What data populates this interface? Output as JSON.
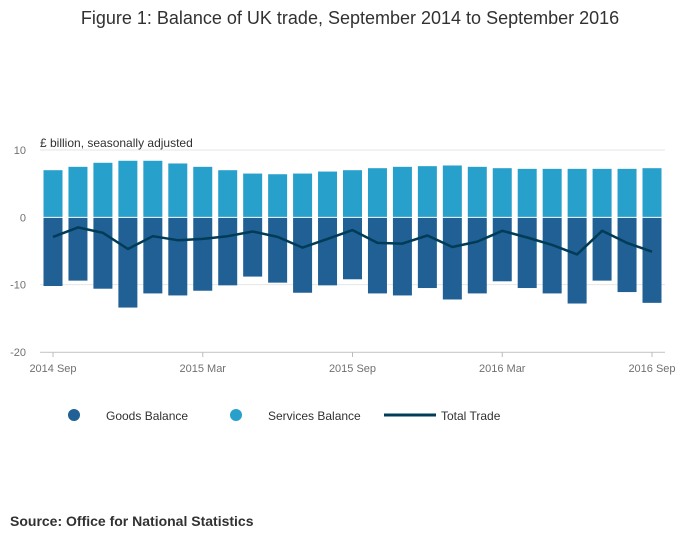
{
  "chart_data": {
    "type": "bar",
    "stacked": true,
    "title": "Figure 1: Balance of UK trade, September 2014 to September 2016",
    "unit_label": "£ billion, seasonally adjusted",
    "ylim": [
      -20,
      10
    ],
    "yticks": [
      10,
      0,
      -10,
      -20
    ],
    "x_tick_labels": [
      "2014 Sep",
      "2015 Mar",
      "2015 Sep",
      "2016 Mar",
      "2016 Sep"
    ],
    "x_tick_indices": [
      0,
      6,
      12,
      18,
      24
    ],
    "categories": [
      "2014 Sep",
      "2014 Oct",
      "2014 Nov",
      "2014 Dec",
      "2015 Jan",
      "2015 Feb",
      "2015 Mar",
      "2015 Apr",
      "2015 May",
      "2015 Jun",
      "2015 Jul",
      "2015 Aug",
      "2015 Sep",
      "2015 Oct",
      "2015 Nov",
      "2015 Dec",
      "2016 Jan",
      "2016 Feb",
      "2016 Mar",
      "2016 Apr",
      "2016 May",
      "2016 Jun",
      "2016 Jul",
      "2016 Aug",
      "2016 Sep"
    ],
    "series": [
      {
        "name": "Goods Balance",
        "type": "bar",
        "color": "#206095",
        "values": [
          -10.2,
          -9.4,
          -10.6,
          -13.4,
          -11.3,
          -11.6,
          -10.9,
          -10.1,
          -8.8,
          -9.7,
          -11.2,
          -10.1,
          -9.2,
          -11.3,
          -11.6,
          -10.5,
          -12.2,
          -11.3,
          -9.5,
          -10.5,
          -11.3,
          -12.8,
          -9.4,
          -11.1,
          -12.7
        ]
      },
      {
        "name": "Services Balance",
        "type": "bar",
        "color": "#27a0cc",
        "values": [
          7.0,
          7.5,
          8.1,
          8.4,
          8.4,
          8.0,
          7.5,
          7.0,
          6.5,
          6.4,
          6.5,
          6.8,
          7.0,
          7.3,
          7.5,
          7.6,
          7.7,
          7.5,
          7.3,
          7.2,
          7.2,
          7.2,
          7.2,
          7.2,
          7.3
        ]
      },
      {
        "name": "Total Trade",
        "type": "line",
        "color": "#003c57",
        "values": [
          -2.9,
          -1.5,
          -2.3,
          -4.7,
          -2.8,
          -3.4,
          -3.2,
          -2.8,
          -2.1,
          -2.9,
          -4.5,
          -3.2,
          -1.9,
          -3.8,
          -3.9,
          -2.7,
          -4.4,
          -3.6,
          -2.0,
          -3.0,
          -4.1,
          -5.5,
          -2.0,
          -3.8,
          -5.1
        ]
      }
    ]
  },
  "source": "Source: Office for National Statistics"
}
